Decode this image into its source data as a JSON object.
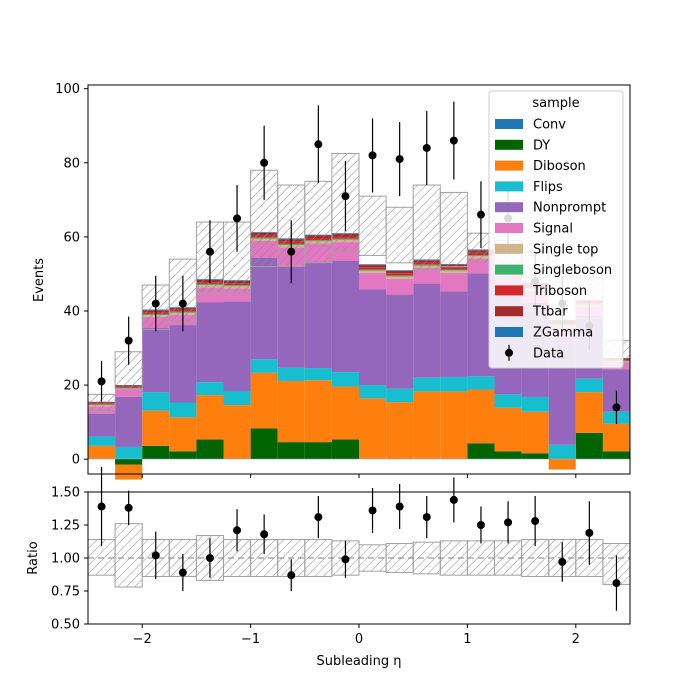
{
  "chart_data": [
    {
      "type": "bar",
      "stacked": true,
      "panel": "main",
      "xlabel": "Subleading η",
      "ylabel": "Events",
      "xlim": [
        -2.5,
        2.5
      ],
      "ylim": [
        -4,
        101
      ],
      "yticks": [
        0,
        20,
        40,
        60,
        80,
        100
      ],
      "xticks": [
        -2,
        -1,
        0,
        1,
        2
      ],
      "bin_edges": [
        -2.5,
        -2.25,
        -2.0,
        -1.75,
        -1.5,
        -1.25,
        -1.0,
        -0.75,
        -0.5,
        -0.25,
        0.0,
        0.25,
        0.5,
        0.75,
        1.0,
        1.25,
        1.5,
        1.75,
        2.0,
        2.25,
        2.5
      ],
      "legend": {
        "title": "sample",
        "position": "top-right",
        "entries": [
          "Conv",
          "DY",
          "Diboson",
          "Flips",
          "Nonprompt",
          "Signal",
          "Single top",
          "Singleboson",
          "Triboson",
          "Ttbar",
          "ZGamma",
          "Data"
        ]
      },
      "series": [
        {
          "name": "Conv",
          "color": "#1f77b4",
          "values": [
            0.1,
            0.1,
            0.1,
            0.1,
            0.1,
            0.1,
            0.1,
            0.1,
            0.1,
            0.1,
            0.1,
            0.1,
            0.1,
            0.1,
            0.1,
            0.1,
            0.1,
            0.1,
            0.1,
            0.1
          ]
        },
        {
          "name": "DY",
          "color": "#006400",
          "values": [
            0,
            -1.5,
            3.5,
            2,
            5.2,
            0,
            8.2,
            4.5,
            4.5,
            5.2,
            0,
            0,
            0,
            0,
            4.2,
            2,
            1.5,
            0,
            7,
            2
          ]
        },
        {
          "name": "Diboson",
          "color": "#ff7f0e",
          "values": [
            3.5,
            -4,
            9.5,
            9.2,
            12,
            14.5,
            15,
            16.5,
            16.7,
            14.3,
            16.3,
            15.3,
            18.2,
            18.2,
            14.5,
            11.8,
            11.2,
            -2.8,
            11,
            7.5
          ]
        },
        {
          "name": "Flips",
          "color": "#17becf",
          "values": [
            2.5,
            3.2,
            5,
            4,
            3.5,
            3.8,
            3.7,
            3.6,
            3.3,
            3.9,
            3.6,
            3.6,
            3.7,
            3.9,
            3.6,
            3.6,
            4,
            3.8,
            3.6,
            3.2
          ]
        },
        {
          "name": "Nonprompt",
          "color": "#9467bd",
          "values": [
            6.2,
            13.5,
            17.3,
            20.9,
            21.6,
            24.2,
            27.4,
            27.5,
            28.6,
            30.1,
            25.8,
            25.5,
            25.4,
            23.1,
            27.8,
            28.6,
            25.4,
            28.7,
            17,
            11.5
          ]
        },
        {
          "name": "Signal",
          "color": "#e377c2",
          "values": [
            2,
            2,
            3,
            2.8,
            4,
            3.5,
            4.5,
            5,
            5,
            5,
            4.5,
            4.2,
            4.2,
            5,
            4,
            3.5,
            3.2,
            3,
            2.5,
            1.8
          ]
        },
        {
          "name": "Single top",
          "color": "#d2b48c",
          "values": [
            0.3,
            0.3,
            0.5,
            0.5,
            0.6,
            0.6,
            0.6,
            0.6,
            0.6,
            0.6,
            0.6,
            0.6,
            0.6,
            0.6,
            0.6,
            0.6,
            0.6,
            0.5,
            0.5,
            0.3
          ]
        },
        {
          "name": "Singleboson",
          "color": "#3cb371",
          "values": [
            0.2,
            0.2,
            0.3,
            0.3,
            0.3,
            0.3,
            0.3,
            0.3,
            0.3,
            0.3,
            0.3,
            0.3,
            0.3,
            0.3,
            0.3,
            0.3,
            0.3,
            0.3,
            0.3,
            0.2
          ]
        },
        {
          "name": "Triboson",
          "color": "#d62728",
          "values": [
            0.3,
            0.3,
            0.5,
            0.5,
            0.5,
            0.5,
            0.6,
            0.6,
            0.6,
            0.6,
            0.6,
            0.6,
            0.6,
            0.6,
            0.6,
            0.5,
            0.5,
            0.5,
            0.4,
            0.3
          ]
        },
        {
          "name": "Ttbar",
          "color": "#a52a2a",
          "values": [
            0.3,
            0.3,
            0.5,
            0.5,
            0.6,
            0.6,
            0.7,
            0.7,
            0.7,
            0.7,
            0.6,
            0.6,
            0.6,
            0.7,
            0.7,
            0.6,
            0.6,
            0.5,
            0.4,
            0.3
          ]
        },
        {
          "name": "ZGamma",
          "color": "#1f77b4",
          "values": [
            0.1,
            0.1,
            0.2,
            0.2,
            0.2,
            0.2,
            0.2,
            0.2,
            0.2,
            0.2,
            0.2,
            0.2,
            0.2,
            0.2,
            0.2,
            0.2,
            0.2,
            0.2,
            0.1,
            0.1
          ]
        }
      ],
      "uncertainty_band": {
        "low": [
          13,
          19,
          35,
          37,
          45,
          45,
          52,
          52,
          53,
          56,
          55,
          53,
          51,
          52,
          53,
          51,
          49,
          45,
          38,
          26
        ],
        "high": [
          17.5,
          29,
          47,
          54,
          64,
          64,
          78,
          74,
          75,
          82.5,
          71,
          68,
          74,
          72,
          61,
          59,
          56,
          52,
          49,
          32
        ]
      },
      "data": {
        "name": "Data",
        "x": [
          -2.375,
          -2.125,
          -1.875,
          -1.625,
          -1.375,
          -1.125,
          -0.875,
          -0.625,
          -0.375,
          -0.125,
          0.125,
          0.375,
          0.625,
          0.875,
          1.125,
          1.375,
          1.625,
          1.875,
          2.125,
          2.375
        ],
        "y": [
          21,
          32,
          42,
          42,
          56,
          65,
          80,
          56,
          85,
          71,
          82,
          81,
          84,
          86,
          66,
          65,
          48,
          42,
          36,
          14
        ],
        "err": [
          5.5,
          6.5,
          7.5,
          7.5,
          8.5,
          9,
          10,
          8.5,
          10.5,
          9.5,
          10,
          10,
          10,
          10.5,
          9,
          9,
          7.5,
          7.5,
          6.5,
          4.5
        ]
      }
    },
    {
      "type": "scatter",
      "panel": "ratio",
      "xlabel": "Subleading η",
      "ylabel": "Ratio",
      "xlim": [
        -2.5,
        2.5
      ],
      "ylim": [
        0.5,
        1.5
      ],
      "yticks": [
        0.5,
        0.75,
        1.0,
        1.25,
        1.5
      ],
      "xticks": [
        -2,
        -1,
        0,
        1,
        2
      ],
      "reference_line": 1.0,
      "uncertainty_band": {
        "low": [
          0.87,
          0.78,
          0.86,
          0.86,
          0.83,
          0.86,
          0.86,
          0.86,
          0.86,
          0.87,
          0.9,
          0.89,
          0.88,
          0.87,
          0.87,
          0.87,
          0.86,
          0.86,
          0.86,
          0.8
        ],
        "high": [
          1.14,
          1.26,
          1.14,
          1.14,
          1.17,
          1.14,
          1.14,
          1.14,
          1.14,
          1.13,
          1.1,
          1.11,
          1.12,
          1.13,
          1.13,
          1.13,
          1.14,
          1.14,
          1.14,
          1.11
        ]
      },
      "data": {
        "x": [
          -2.375,
          -2.125,
          -1.875,
          -1.625,
          -1.375,
          -1.125,
          -0.875,
          -0.625,
          -0.375,
          -0.125,
          0.125,
          0.375,
          0.625,
          0.875,
          1.125,
          1.375,
          1.625,
          1.875,
          2.125,
          2.375
        ],
        "y": [
          1.39,
          1.38,
          1.02,
          0.89,
          1.0,
          1.21,
          1.18,
          0.87,
          1.31,
          0.99,
          1.36,
          1.39,
          1.31,
          1.44,
          1.25,
          1.27,
          1.28,
          0.97,
          1.19,
          0.81
        ],
        "err": [
          0.3,
          0.13,
          0.18,
          0.14,
          0.15,
          0.16,
          0.15,
          0.12,
          0.16,
          0.14,
          0.17,
          0.17,
          0.16,
          0.17,
          0.14,
          0.16,
          0.19,
          0.15,
          0.24,
          0.21
        ]
      }
    }
  ]
}
